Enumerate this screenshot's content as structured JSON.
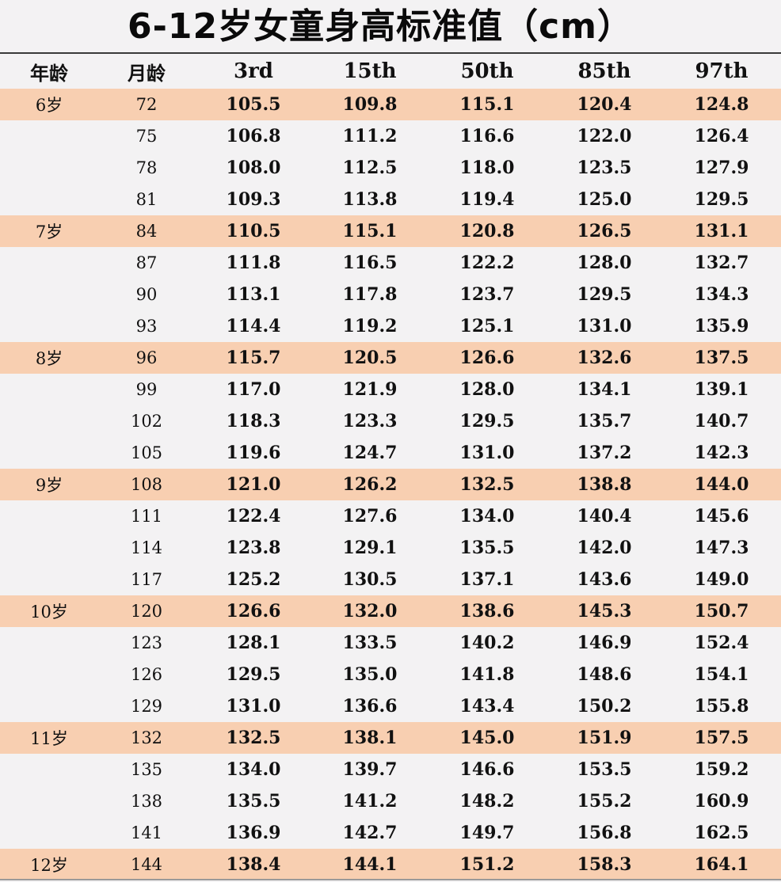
{
  "title": "6-12岁女童身高标准值（cm）",
  "colors": {
    "highlight_row": "#f8cfb1",
    "background": "#f3f2f3",
    "text": "#111111"
  },
  "table": {
    "headers": [
      "年龄",
      "月龄",
      "3rd",
      "15th",
      "50th",
      "85th",
      "97th"
    ],
    "rows": [
      {
        "age": "6岁",
        "month": "72",
        "values": [
          "105.5",
          "109.8",
          "115.1",
          "120.4",
          "124.8"
        ]
      },
      {
        "age": "",
        "month": "75",
        "values": [
          "106.8",
          "111.2",
          "116.6",
          "122.0",
          "126.4"
        ]
      },
      {
        "age": "",
        "month": "78",
        "values": [
          "108.0",
          "112.5",
          "118.0",
          "123.5",
          "127.9"
        ]
      },
      {
        "age": "",
        "month": "81",
        "values": [
          "109.3",
          "113.8",
          "119.4",
          "125.0",
          "129.5"
        ]
      },
      {
        "age": "7岁",
        "month": "84",
        "values": [
          "110.5",
          "115.1",
          "120.8",
          "126.5",
          "131.1"
        ]
      },
      {
        "age": "",
        "month": "87",
        "values": [
          "111.8",
          "116.5",
          "122.2",
          "128.0",
          "132.7"
        ]
      },
      {
        "age": "",
        "month": "90",
        "values": [
          "113.1",
          "117.8",
          "123.7",
          "129.5",
          "134.3"
        ]
      },
      {
        "age": "",
        "month": "93",
        "values": [
          "114.4",
          "119.2",
          "125.1",
          "131.0",
          "135.9"
        ]
      },
      {
        "age": "8岁",
        "month": "96",
        "values": [
          "115.7",
          "120.5",
          "126.6",
          "132.6",
          "137.5"
        ]
      },
      {
        "age": "",
        "month": "99",
        "values": [
          "117.0",
          "121.9",
          "128.0",
          "134.1",
          "139.1"
        ]
      },
      {
        "age": "",
        "month": "102",
        "values": [
          "118.3",
          "123.3",
          "129.5",
          "135.7",
          "140.7"
        ]
      },
      {
        "age": "",
        "month": "105",
        "values": [
          "119.6",
          "124.7",
          "131.0",
          "137.2",
          "142.3"
        ]
      },
      {
        "age": "9岁",
        "month": "108",
        "values": [
          "121.0",
          "126.2",
          "132.5",
          "138.8",
          "144.0"
        ]
      },
      {
        "age": "",
        "month": "111",
        "values": [
          "122.4",
          "127.6",
          "134.0",
          "140.4",
          "145.6"
        ]
      },
      {
        "age": "",
        "month": "114",
        "values": [
          "123.8",
          "129.1",
          "135.5",
          "142.0",
          "147.3"
        ]
      },
      {
        "age": "",
        "month": "117",
        "values": [
          "125.2",
          "130.5",
          "137.1",
          "143.6",
          "149.0"
        ]
      },
      {
        "age": "10岁",
        "month": "120",
        "values": [
          "126.6",
          "132.0",
          "138.6",
          "145.3",
          "150.7"
        ]
      },
      {
        "age": "",
        "month": "123",
        "values": [
          "128.1",
          "133.5",
          "140.2",
          "146.9",
          "152.4"
        ]
      },
      {
        "age": "",
        "month": "126",
        "values": [
          "129.5",
          "135.0",
          "141.8",
          "148.6",
          "154.1"
        ]
      },
      {
        "age": "",
        "month": "129",
        "values": [
          "131.0",
          "136.6",
          "143.4",
          "150.2",
          "155.8"
        ]
      },
      {
        "age": "11岁",
        "month": "132",
        "values": [
          "132.5",
          "138.1",
          "145.0",
          "151.9",
          "157.5"
        ]
      },
      {
        "age": "",
        "month": "135",
        "values": [
          "134.0",
          "139.7",
          "146.6",
          "153.5",
          "159.2"
        ]
      },
      {
        "age": "",
        "month": "138",
        "values": [
          "135.5",
          "141.2",
          "148.2",
          "155.2",
          "160.9"
        ]
      },
      {
        "age": "",
        "month": "141",
        "values": [
          "136.9",
          "142.7",
          "149.7",
          "156.8",
          "162.5"
        ]
      },
      {
        "age": "12岁",
        "month": "144",
        "values": [
          "138.4",
          "144.1",
          "151.2",
          "158.3",
          "164.1"
        ]
      }
    ]
  }
}
